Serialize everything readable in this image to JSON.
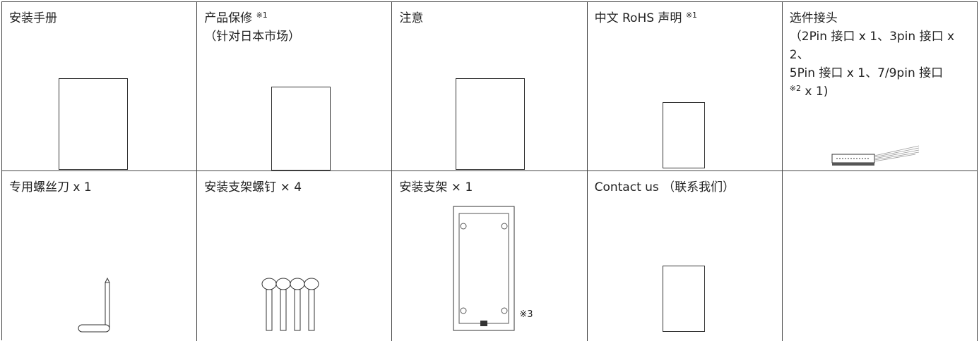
{
  "table": {
    "rows": [
      [
        {
          "title": "安装手册"
        },
        {
          "title": "产品保修",
          "note": "※1",
          "detail": "（针对日本市场）"
        },
        {
          "title": "注意"
        },
        {
          "title": "中文 RoHS 声明",
          "note": "※1"
        },
        {
          "title": "选件接头",
          "detail": "（2Pin 接口 x 1、3pin 接口 x 2、",
          "detail_2": "5Pin 接口 x 1、7/9pin 接口",
          "detail_note": "※2",
          "detail_end": "x 1)"
        }
      ],
      [
        {
          "title": "专用螺丝刀 x 1"
        },
        {
          "title": "安装支架螺钉 × 4"
        },
        {
          "title": "安装支架 × 1",
          "figure_note": "※3"
        },
        {
          "title": "Contact us （联系我们）"
        }
      ]
    ]
  }
}
